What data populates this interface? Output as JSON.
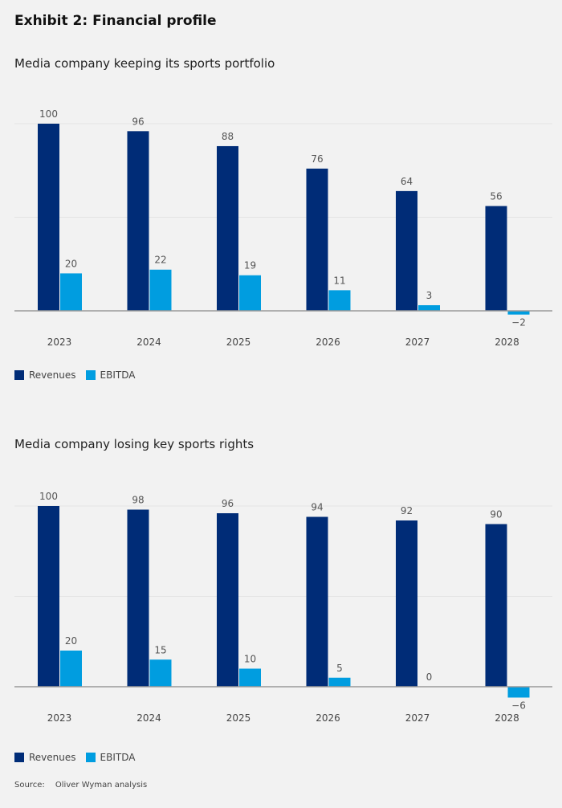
{
  "title": "Exhibit 2: Financial profile",
  "colors": {
    "revenues": "#002c77",
    "ebitda": "#009de0",
    "grid": "#e4e4e4",
    "axis": "#999999"
  },
  "chart_data": [
    {
      "type": "bar",
      "title": "Media company keeping its sports portfolio",
      "categories": [
        "2023",
        "2024",
        "2025",
        "2026",
        "2027",
        "2028"
      ],
      "series": [
        {
          "name": "Revenues",
          "values": [
            100,
            96,
            88,
            76,
            64,
            56
          ]
        },
        {
          "name": "EBITDA",
          "values": [
            20,
            22,
            19,
            11,
            3,
            -2
          ]
        }
      ],
      "ylim": [
        0,
        100
      ],
      "gridlines": [
        0,
        50,
        100
      ],
      "legend": "bottom-left"
    },
    {
      "type": "bar",
      "title": "Media company losing key sports rights",
      "categories": [
        "2023",
        "2024",
        "2025",
        "2026",
        "2027",
        "2028"
      ],
      "series": [
        {
          "name": "Revenues",
          "values": [
            100,
            98,
            96,
            94,
            92,
            90
          ]
        },
        {
          "name": "EBITDA",
          "values": [
            20,
            15,
            10,
            5,
            0,
            -6
          ]
        }
      ],
      "ylim": [
        0,
        100
      ],
      "gridlines": [
        0,
        50,
        100
      ],
      "legend": "bottom-left"
    }
  ],
  "source": {
    "label": "Source:",
    "text": "Oliver Wyman analysis"
  }
}
